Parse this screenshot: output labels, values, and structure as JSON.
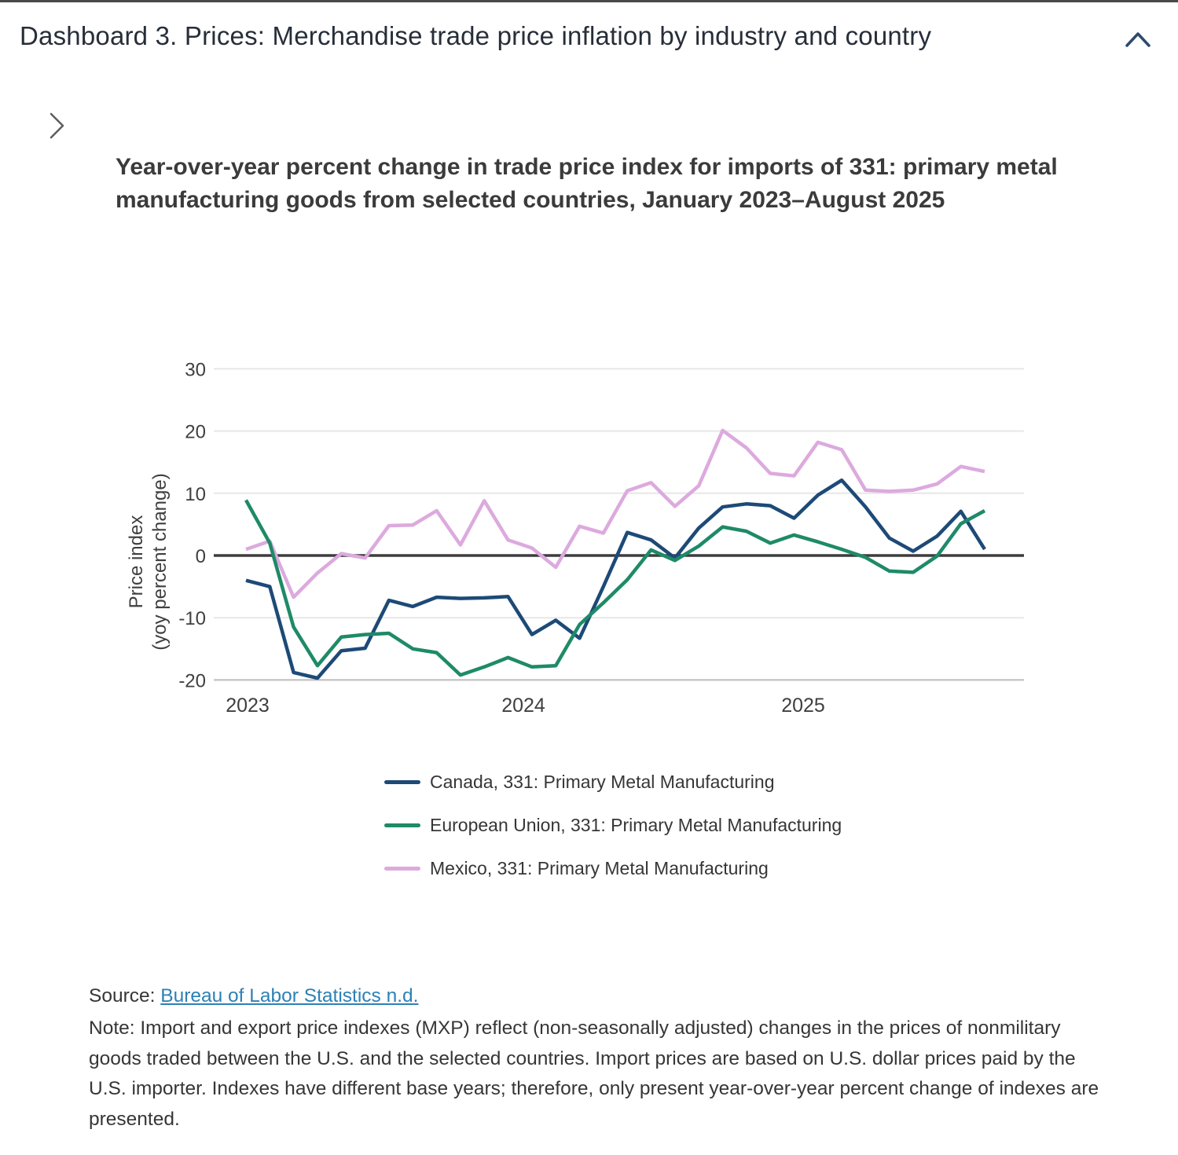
{
  "header": {
    "title": "Dashboard 3. Prices: Merchandise trade price inflation by industry and country"
  },
  "chart_data": {
    "type": "line",
    "title": "Year-over-year percent change in trade price index for imports of 331: primary metal manufacturing goods from selected countries, January 2023–August 2025",
    "ylabel_line1": "Price index",
    "ylabel_line2": "(yoy percent change)",
    "ylim": [
      -20,
      30
    ],
    "yticks": [
      30,
      20,
      10,
      0,
      -10,
      -20
    ],
    "x_tick_labels": [
      "2023",
      "2024",
      "2025"
    ],
    "grid": true,
    "legend_position": "bottom",
    "months": [
      "Jan 2023",
      "Feb 2023",
      "Mar 2023",
      "Apr 2023",
      "May 2023",
      "Jun 2023",
      "Jul 2023",
      "Aug 2023",
      "Sep 2023",
      "Oct 2023",
      "Nov 2023",
      "Dec 2023",
      "Jan 2024",
      "Feb 2024",
      "Mar 2024",
      "Apr 2024",
      "May 2024",
      "Jun 2024",
      "Jul 2024",
      "Aug 2024",
      "Sep 2024",
      "Oct 2024",
      "Nov 2024",
      "Dec 2024",
      "Jan 2025",
      "Feb 2025",
      "Mar 2025",
      "Apr 2025",
      "May 2025",
      "Jun 2025",
      "Jul 2025",
      "Aug 2025"
    ],
    "series": [
      {
        "name": "Canada, 331: Primary Metal Manufacturing",
        "color": "#1d4a77",
        "values": [
          -4.0,
          -5.0,
          -18.8,
          -19.7,
          -15.3,
          -14.9,
          -7.2,
          -8.2,
          -6.7,
          -6.9,
          -6.8,
          -6.6,
          -12.7,
          -10.4,
          -13.3,
          -5.0,
          3.7,
          2.5,
          -0.4,
          4.4,
          7.8,
          8.3,
          8.0,
          6.0,
          9.7,
          12.1,
          7.8,
          2.8,
          0.7,
          3.1,
          7.1,
          1.0
        ]
      },
      {
        "name": "European Union, 331: Primary Metal Manufacturing",
        "color": "#1e8a68",
        "values": [
          8.9,
          2.0,
          -11.5,
          -17.7,
          -13.1,
          -12.7,
          -12.5,
          -15.0,
          -15.6,
          -19.2,
          -17.9,
          -16.4,
          -17.9,
          -17.7,
          -11.1,
          -7.6,
          -3.9,
          0.9,
          -0.8,
          1.5,
          4.6,
          3.9,
          2.0,
          3.3,
          2.2,
          1.0,
          -0.3,
          -2.5,
          -2.7,
          -0.1,
          5.1,
          7.2
        ]
      },
      {
        "name": "Mexico, 331: Primary Metal Manufacturing",
        "color": "#dcaade",
        "values": [
          1.0,
          2.3,
          -6.7,
          -2.8,
          0.3,
          -0.4,
          4.8,
          4.9,
          7.2,
          1.7,
          8.8,
          2.5,
          1.2,
          -1.9,
          4.7,
          3.6,
          10.4,
          11.7,
          7.9,
          11.2,
          20.1,
          17.3,
          13.2,
          12.8,
          18.2,
          17.0,
          10.5,
          10.3,
          10.5,
          11.5,
          14.3,
          13.5
        ]
      }
    ]
  },
  "footer": {
    "source_label": "Source: ",
    "source_link": "Bureau of Labor Statistics n.d.",
    "note": "Note: Import and export price indexes (MXP) reflect (non-seasonally adjusted) changes in the prices of nonmilitary goods traded between the U.S. and the selected countries. Import prices are based on U.S. dollar prices paid by the U.S. importer. Indexes have different base years; therefore, only present year-over-year percent change of indexes are presented."
  }
}
